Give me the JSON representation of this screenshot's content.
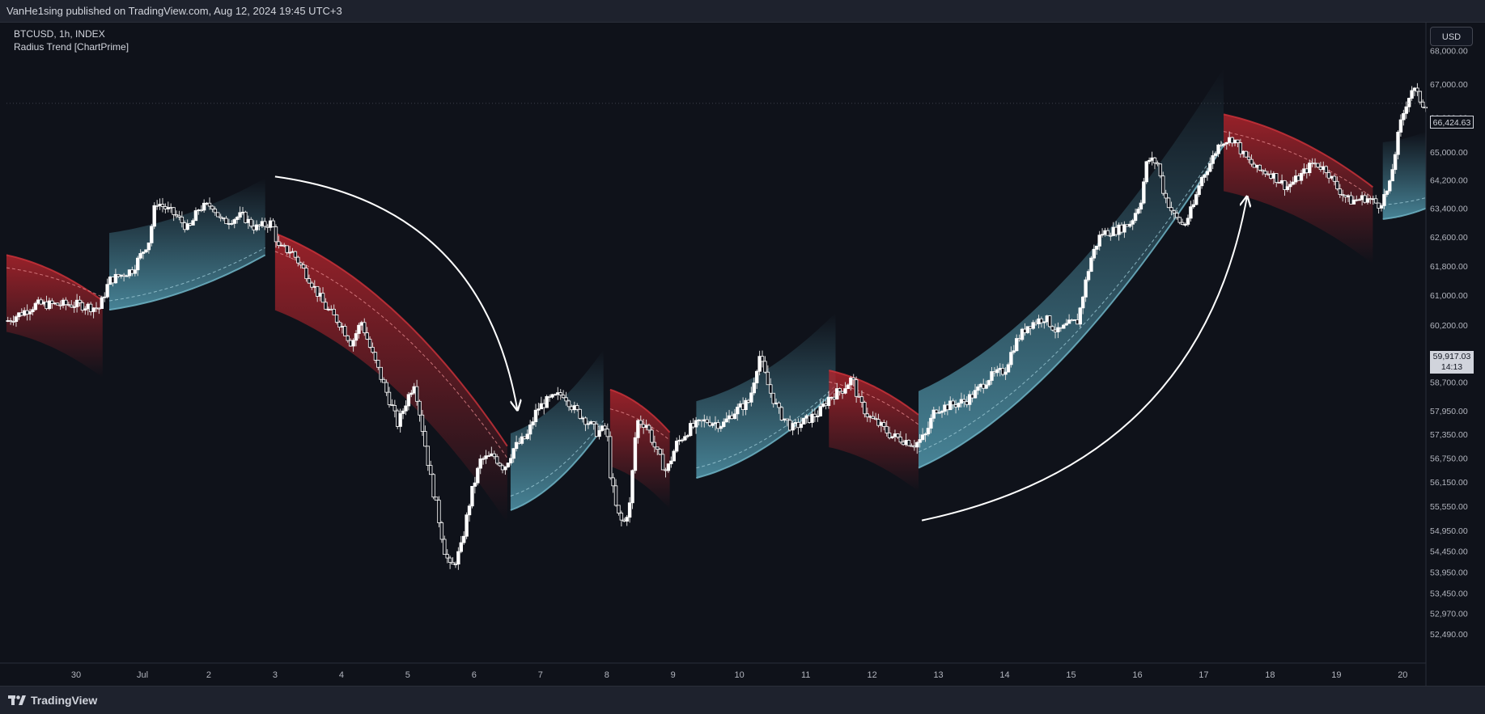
{
  "header": {
    "publish_text": "VanHe1sing published on TradingView.com, Aug 12, 2024 19:45 UTC+3"
  },
  "legend": {
    "symbol_line": "BTCUSD, 1h, INDEX",
    "indicator_line": "Radius Trend [ChartPrime]"
  },
  "price_axis": {
    "currency_button": "USD",
    "last_price": "66,424.63",
    "cursor_price": "59,917.03",
    "cursor_countdown": "14:13"
  },
  "footer": {
    "brand": "TradingView"
  },
  "colors": {
    "background": "#0f121a",
    "bear_band": "#b0242c",
    "bull_band": "#4d8fa3",
    "candle": "#ffffff"
  },
  "chart_data": {
    "type": "candlestick",
    "title": "",
    "xlabel": "",
    "ylabel": "",
    "ylim": [
      52000,
      68600
    ],
    "yticks": [
      {
        "value": 68000,
        "label": "68,000.00"
      },
      {
        "value": 67000,
        "label": "67,000.00"
      },
      {
        "value": 66000,
        "label": "66,000.00"
      },
      {
        "value": 65000,
        "label": "65,000.00"
      },
      {
        "value": 64200,
        "label": "64,200.00"
      },
      {
        "value": 63400,
        "label": "63,400.00"
      },
      {
        "value": 62600,
        "label": "62,600.00"
      },
      {
        "value": 61800,
        "label": "61,800.00"
      },
      {
        "value": 61000,
        "label": "61,000.00"
      },
      {
        "value": 60200,
        "label": "60,200.00"
      },
      {
        "value": 58700,
        "label": "58,700.00"
      },
      {
        "value": 57950,
        "label": "57,950.00"
      },
      {
        "value": 57350,
        "label": "57,350.00"
      },
      {
        "value": 56750,
        "label": "56,750.00"
      },
      {
        "value": 56150,
        "label": "56,150.00"
      },
      {
        "value": 55550,
        "label": "55,550.00"
      },
      {
        "value": 54950,
        "label": "54,950.00"
      },
      {
        "value": 54450,
        "label": "54,450.00"
      },
      {
        "value": 53950,
        "label": "53,950.00"
      },
      {
        "value": 53450,
        "label": "53,450.00"
      },
      {
        "value": 52970,
        "label": "52,970.00"
      },
      {
        "value": 52490,
        "label": "52,490.00"
      }
    ],
    "xlim": [
      -1.05,
      20.35
    ],
    "xticks": [
      {
        "value": 0,
        "label": "30"
      },
      {
        "value": 1,
        "label": "Jul"
      },
      {
        "value": 2,
        "label": "2"
      },
      {
        "value": 3,
        "label": "3"
      },
      {
        "value": 4,
        "label": "4"
      },
      {
        "value": 5,
        "label": "5"
      },
      {
        "value": 6,
        "label": "6"
      },
      {
        "value": 7,
        "label": "7"
      },
      {
        "value": 8,
        "label": "8"
      },
      {
        "value": 9,
        "label": "9"
      },
      {
        "value": 10,
        "label": "10"
      },
      {
        "value": 11,
        "label": "11"
      },
      {
        "value": 12,
        "label": "12"
      },
      {
        "value": 13,
        "label": "13"
      },
      {
        "value": 14,
        "label": "14"
      },
      {
        "value": 15,
        "label": "15"
      },
      {
        "value": 16,
        "label": "16"
      },
      {
        "value": 17,
        "label": "17"
      },
      {
        "value": 18,
        "label": "18"
      },
      {
        "value": 19,
        "label": "19"
      },
      {
        "value": 20,
        "label": "20"
      }
    ],
    "price_path": [
      [
        -1.05,
        60300
      ],
      [
        -0.6,
        60750
      ],
      [
        0.0,
        60750
      ],
      [
        0.35,
        60650
      ],
      [
        0.5,
        61400
      ],
      [
        0.85,
        61700
      ],
      [
        1.1,
        62500
      ],
      [
        1.2,
        63600
      ],
      [
        1.5,
        63200
      ],
      [
        1.7,
        62800
      ],
      [
        1.85,
        63400
      ],
      [
        2.05,
        63500
      ],
      [
        2.2,
        63000
      ],
      [
        2.5,
        63200
      ],
      [
        2.7,
        62850
      ],
      [
        2.95,
        63000
      ],
      [
        3.05,
        62300
      ],
      [
        3.25,
        62200
      ],
      [
        3.5,
        61500
      ],
      [
        3.75,
        60700
      ],
      [
        4.0,
        60200
      ],
      [
        4.15,
        59700
      ],
      [
        4.3,
        60300
      ],
      [
        4.45,
        59500
      ],
      [
        4.6,
        58800
      ],
      [
        4.75,
        58100
      ],
      [
        4.85,
        57600
      ],
      [
        5.0,
        58300
      ],
      [
        5.1,
        58700
      ],
      [
        5.25,
        57200
      ],
      [
        5.35,
        56200
      ],
      [
        5.45,
        55400
      ],
      [
        5.55,
        54500
      ],
      [
        5.65,
        54000
      ],
      [
        5.8,
        54500
      ],
      [
        5.95,
        55800
      ],
      [
        6.1,
        56700
      ],
      [
        6.3,
        56800
      ],
      [
        6.45,
        56500
      ],
      [
        6.6,
        57000
      ],
      [
        6.8,
        57300
      ],
      [
        6.95,
        58000
      ],
      [
        7.1,
        58200
      ],
      [
        7.35,
        58400
      ],
      [
        7.5,
        58000
      ],
      [
        7.7,
        57700
      ],
      [
        7.85,
        57400
      ],
      [
        8.0,
        57500
      ],
      [
        8.05,
        56400
      ],
      [
        8.15,
        55400
      ],
      [
        8.25,
        55100
      ],
      [
        8.35,
        55600
      ],
      [
        8.45,
        57700
      ],
      [
        8.6,
        57600
      ],
      [
        8.75,
        56900
      ],
      [
        8.9,
        56400
      ],
      [
        9.05,
        57100
      ],
      [
        9.25,
        57500
      ],
      [
        9.5,
        57700
      ],
      [
        9.75,
        57600
      ],
      [
        9.9,
        57900
      ],
      [
        10.15,
        58200
      ],
      [
        10.3,
        59400
      ],
      [
        10.45,
        58500
      ],
      [
        10.6,
        57900
      ],
      [
        10.8,
        57500
      ],
      [
        11.0,
        57700
      ],
      [
        11.2,
        57900
      ],
      [
        11.35,
        58300
      ],
      [
        11.55,
        58500
      ],
      [
        11.7,
        58800
      ],
      [
        11.8,
        58200
      ],
      [
        11.95,
        57800
      ],
      [
        12.1,
        57600
      ],
      [
        12.3,
        57300
      ],
      [
        12.5,
        57200
      ],
      [
        12.65,
        57100
      ],
      [
        12.8,
        57300
      ],
      [
        12.95,
        58000
      ],
      [
        13.2,
        58100
      ],
      [
        13.4,
        58200
      ],
      [
        13.55,
        58400
      ],
      [
        13.75,
        58800
      ],
      [
        14.0,
        59000
      ],
      [
        14.15,
        59700
      ],
      [
        14.35,
        60200
      ],
      [
        14.6,
        60400
      ],
      [
        14.8,
        60000
      ],
      [
        14.95,
        60200
      ],
      [
        15.1,
        60300
      ],
      [
        15.2,
        61200
      ],
      [
        15.3,
        62000
      ],
      [
        15.45,
        62700
      ],
      [
        15.7,
        62800
      ],
      [
        15.9,
        63000
      ],
      [
        16.05,
        63600
      ],
      [
        16.15,
        64800
      ],
      [
        16.3,
        64700
      ],
      [
        16.4,
        63800
      ],
      [
        16.55,
        63200
      ],
      [
        16.7,
        62900
      ],
      [
        16.85,
        63500
      ],
      [
        16.95,
        64200
      ],
      [
        17.1,
        64700
      ],
      [
        17.25,
        65300
      ],
      [
        17.45,
        65400
      ],
      [
        17.6,
        64900
      ],
      [
        17.8,
        64500
      ],
      [
        18.0,
        64400
      ],
      [
        18.25,
        64000
      ],
      [
        18.45,
        64300
      ],
      [
        18.65,
        64700
      ],
      [
        18.85,
        64500
      ],
      [
        19.0,
        64000
      ],
      [
        19.2,
        63600
      ],
      [
        19.45,
        63700
      ],
      [
        19.65,
        63500
      ],
      [
        19.8,
        64000
      ],
      [
        19.95,
        65700
      ],
      [
        20.05,
        66400
      ],
      [
        20.15,
        66900
      ],
      [
        20.3,
        66400
      ]
    ],
    "radius_bands": [
      {
        "direction": "bull",
        "x": [
          0.5,
          2.85
        ],
        "base": [
          60610,
          62100
        ],
        "center": [
          60850,
          62300
        ]
      },
      {
        "direction": "bear",
        "x": [
          -1.05,
          0.4
        ],
        "upper": [
          62100,
          60850
        ],
        "center": [
          61750,
          60950
        ]
      },
      {
        "direction": "bear",
        "x": [
          3.0,
          6.5
        ],
        "upper": [
          62700,
          57050
        ],
        "center": [
          62200,
          56750
        ]
      },
      {
        "direction": "bull",
        "x": [
          6.55,
          7.95
        ],
        "base": [
          55450,
          57550
        ],
        "center": [
          55800,
          57700
        ]
      },
      {
        "direction": "bear",
        "x": [
          8.05,
          8.95
        ],
        "upper": [
          58500,
          57400
        ],
        "center": [
          58000,
          57200
        ]
      },
      {
        "direction": "bull",
        "x": [
          9.35,
          11.45
        ],
        "base": [
          56250,
          58500
        ],
        "center": [
          56500,
          58600
        ]
      },
      {
        "direction": "bear",
        "x": [
          11.35,
          12.7
        ],
        "upper": [
          59000,
          57850
        ],
        "center": [
          58700,
          57600
        ]
      },
      {
        "direction": "bull",
        "x": [
          12.7,
          17.3
        ],
        "base": [
          56500,
          65200
        ],
        "center": [
          56900,
          65350
        ]
      },
      {
        "direction": "bear",
        "x": [
          17.3,
          19.55
        ],
        "upper": [
          66100,
          64000
        ],
        "center": [
          65600,
          63700
        ]
      },
      {
        "direction": "bull",
        "x": [
          19.7,
          20.35
        ],
        "base": [
          63100,
          63400
        ],
        "center": [
          63500,
          63700
        ]
      }
    ],
    "annotations": [
      {
        "type": "arrow-curve",
        "from": [
          3.0,
          64300
        ],
        "to": [
          6.65,
          58000
        ]
      },
      {
        "type": "arrow-curve",
        "from": [
          12.75,
          55200
        ],
        "to": [
          17.65,
          63700
        ]
      }
    ]
  }
}
